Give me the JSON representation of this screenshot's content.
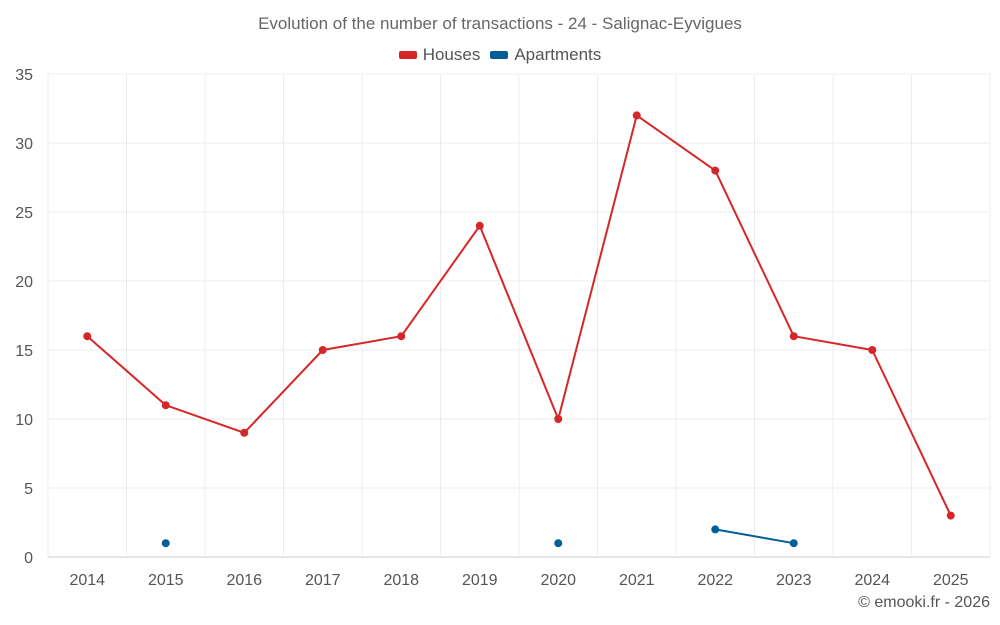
{
  "chart_data": {
    "type": "line",
    "title": "Evolution of the number of transactions - 24 - Salignac-Eyvigues",
    "categories": [
      "2014",
      "2015",
      "2016",
      "2017",
      "2018",
      "2019",
      "2020",
      "2021",
      "2022",
      "2023",
      "2024",
      "2025"
    ],
    "series": [
      {
        "name": "Houses",
        "color": "#d62728",
        "values": [
          16,
          11,
          9,
          15,
          16,
          24,
          10,
          32,
          28,
          16,
          15,
          3
        ]
      },
      {
        "name": "Apartments",
        "color": "#005f99",
        "values": [
          null,
          1,
          null,
          null,
          null,
          null,
          1,
          null,
          2,
          1,
          null,
          null
        ]
      }
    ],
    "ylim": [
      0,
      35
    ],
    "yticks": [
      "0",
      "5",
      "10",
      "15",
      "20",
      "25",
      "30",
      "35"
    ],
    "xlabel": "",
    "ylabel": "",
    "grid": true,
    "legend_position": "top-center"
  },
  "credit": "© emooki.fr - 2026"
}
